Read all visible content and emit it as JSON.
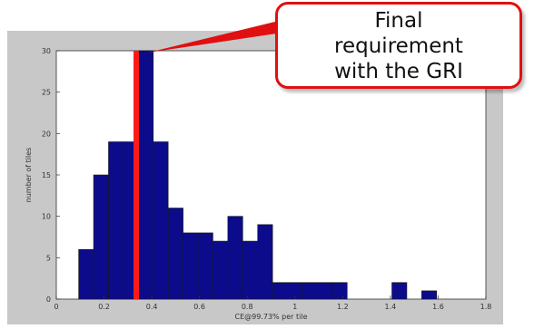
{
  "chart_data": {
    "type": "bar",
    "title": "",
    "xlabel": "CE@99.73% per tile",
    "ylabel": "number of tiles",
    "xlim": [
      0,
      1.8
    ],
    "ylim": [
      0,
      30
    ],
    "x_ticks": [
      0,
      0.2,
      0.4,
      0.6,
      0.8,
      1,
      1.2,
      1.4,
      1.6,
      1.8
    ],
    "y_ticks": [
      0,
      5,
      10,
      15,
      20,
      25,
      30
    ],
    "bin_width": 0.0625,
    "bins": [
      {
        "x": 0.125,
        "y": 6
      },
      {
        "x": 0.1875,
        "y": 15
      },
      {
        "x": 0.25,
        "y": 19
      },
      {
        "x": 0.3125,
        "y": 19
      },
      {
        "x": 0.375,
        "y": 30
      },
      {
        "x": 0.4375,
        "y": 19
      },
      {
        "x": 0.5,
        "y": 11
      },
      {
        "x": 0.5625,
        "y": 8
      },
      {
        "x": 0.625,
        "y": 8
      },
      {
        "x": 0.6875,
        "y": 7
      },
      {
        "x": 0.75,
        "y": 10
      },
      {
        "x": 0.8125,
        "y": 7
      },
      {
        "x": 0.875,
        "y": 9
      },
      {
        "x": 0.9375,
        "y": 2
      },
      {
        "x": 1.0,
        "y": 2
      },
      {
        "x": 1.0625,
        "y": 2
      },
      {
        "x": 1.125,
        "y": 2
      },
      {
        "x": 1.1875,
        "y": 2
      },
      {
        "x": 1.4375,
        "y": 2
      },
      {
        "x": 1.5625,
        "y": 1
      }
    ],
    "requirement_line": {
      "x": 0.335,
      "color": "#ff1a1a"
    },
    "bar_color": "#0b0b8c",
    "grid": false,
    "legend": "none"
  },
  "annotation": {
    "lines": [
      "Final",
      "requirement",
      "with the GRI"
    ],
    "border_color": "#e01010"
  }
}
